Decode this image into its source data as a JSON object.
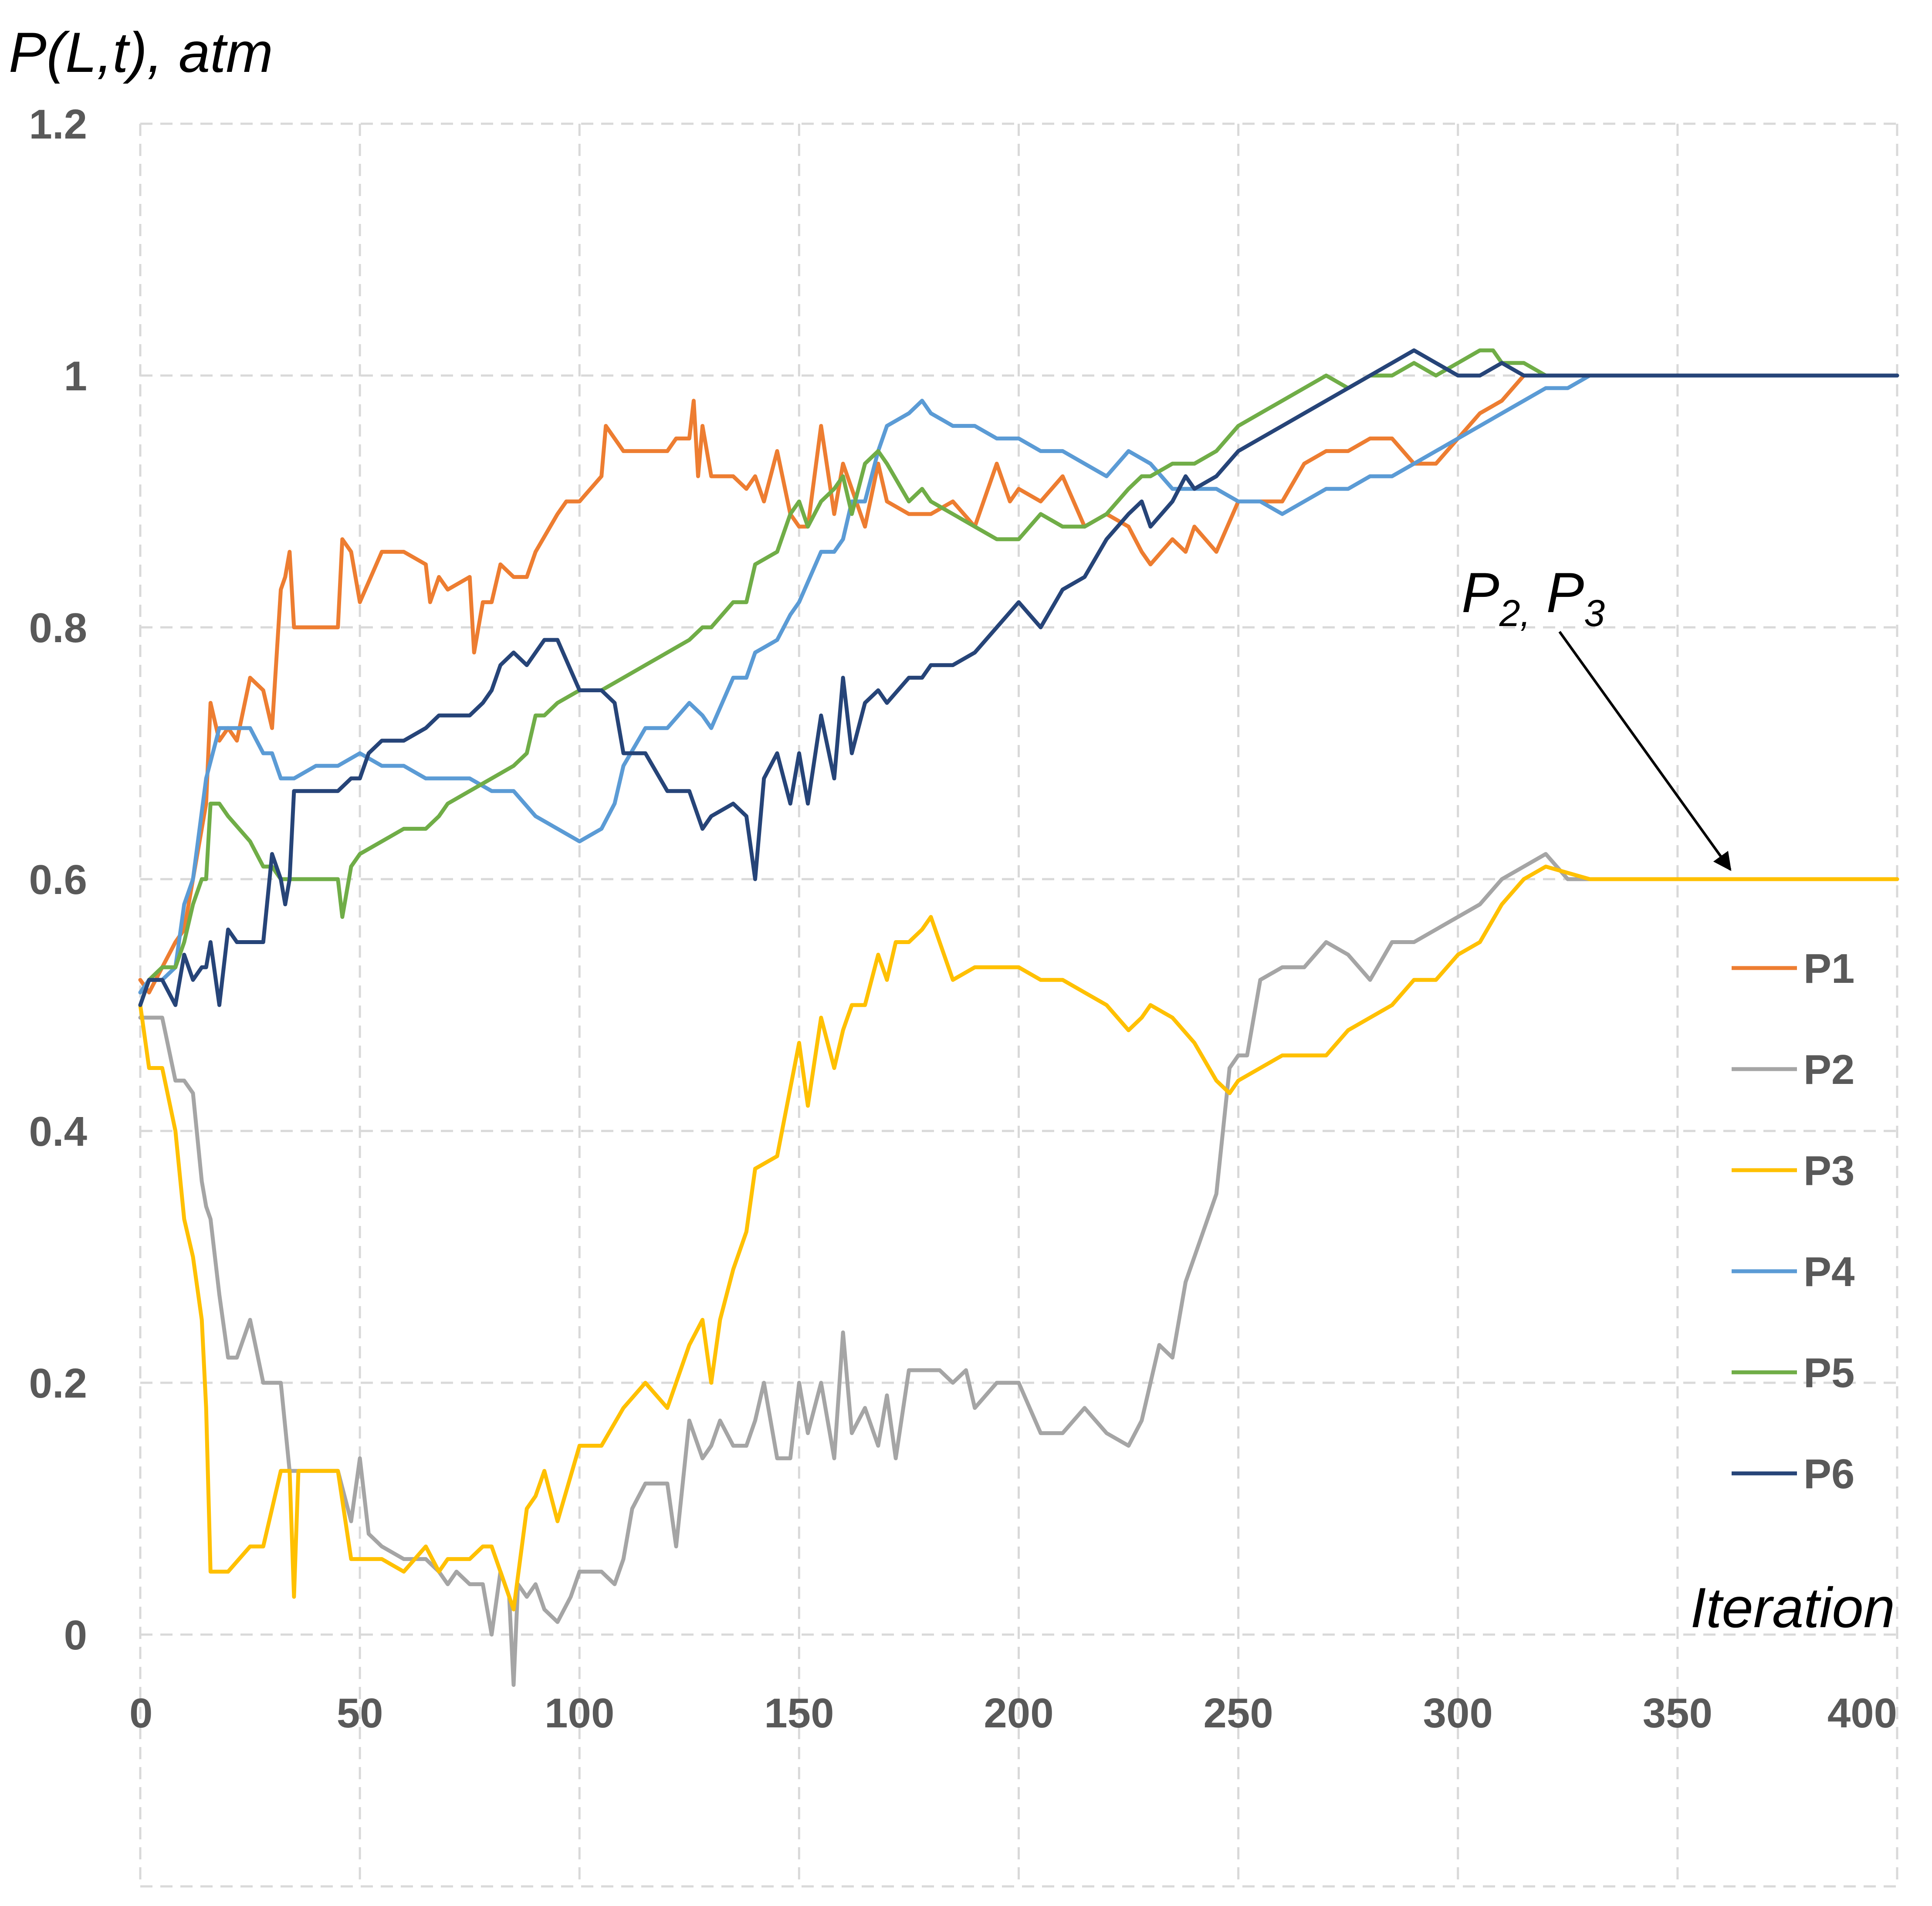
{
  "chart_data": {
    "type": "line",
    "ylabel": "P(L,t), atm",
    "xlabel": "Iteration",
    "xlim": [
      0,
      400
    ],
    "ylim": [
      -0.2,
      1.2
    ],
    "x_ticks": [
      "0",
      "50",
      "100",
      "150",
      "200",
      "250",
      "300",
      "350",
      "400"
    ],
    "y_ticks": [
      "0",
      "0.2",
      "0.4",
      "0.6",
      "0.8",
      "1",
      "1.2"
    ],
    "grid": true,
    "legend_position": "right",
    "annotation": {
      "base1": "P",
      "sub1": "2,",
      "base2": "P",
      "sub2": "3",
      "points_to": [
        362,
        0.6
      ]
    },
    "series": [
      {
        "name": "P1",
        "color": "#ED7D31",
        "x": [
          0,
          2,
          5,
          8,
          10,
          12,
          15,
          16,
          18,
          20,
          22,
          25,
          28,
          30,
          32,
          33,
          34,
          35,
          36,
          38,
          45,
          46,
          48,
          50,
          55,
          60,
          65,
          66,
          68,
          70,
          75,
          76,
          78,
          80,
          82,
          85,
          88,
          90,
          95,
          97,
          100,
          105,
          106,
          110,
          115,
          120,
          122,
          125,
          126,
          127,
          128,
          130,
          135,
          138,
          140,
          142,
          145,
          148,
          150,
          152,
          155,
          158,
          160,
          162,
          165,
          168,
          170,
          175,
          180,
          185,
          190,
          195,
          198,
          200,
          205,
          210,
          215,
          220,
          225,
          228,
          230,
          235,
          238,
          240,
          245,
          250,
          255,
          260,
          265,
          270,
          275,
          280,
          285,
          290,
          295,
          300,
          305,
          310,
          315,
          320,
          330,
          340,
          350,
          360,
          380,
          400
        ],
        "y": [
          0.52,
          0.51,
          0.53,
          0.55,
          0.56,
          0.6,
          0.66,
          0.74,
          0.71,
          0.72,
          0.71,
          0.76,
          0.75,
          0.72,
          0.83,
          0.84,
          0.86,
          0.8,
          0.8,
          0.8,
          0.8,
          0.87,
          0.86,
          0.82,
          0.86,
          0.86,
          0.85,
          0.82,
          0.84,
          0.83,
          0.84,
          0.78,
          0.82,
          0.82,
          0.85,
          0.84,
          0.84,
          0.86,
          0.89,
          0.9,
          0.9,
          0.92,
          0.96,
          0.94,
          0.94,
          0.94,
          0.95,
          0.95,
          0.98,
          0.92,
          0.96,
          0.92,
          0.92,
          0.91,
          0.92,
          0.9,
          0.94,
          0.89,
          0.88,
          0.88,
          0.96,
          0.89,
          0.93,
          0.91,
          0.88,
          0.93,
          0.9,
          0.89,
          0.89,
          0.9,
          0.88,
          0.93,
          0.9,
          0.91,
          0.9,
          0.92,
          0.88,
          0.89,
          0.88,
          0.86,
          0.85,
          0.87,
          0.86,
          0.88,
          0.86,
          0.9,
          0.9,
          0.9,
          0.93,
          0.94,
          0.94,
          0.95,
          0.95,
          0.93,
          0.93,
          0.95,
          0.97,
          0.98,
          1.0,
          1.0,
          1.0,
          1.0,
          1.0,
          1.0,
          1.0,
          1.0
        ]
      },
      {
        "name": "P2",
        "color": "#A5A5A5",
        "x": [
          0,
          2,
          5,
          8,
          10,
          12,
          14,
          15,
          16,
          17,
          18,
          20,
          22,
          25,
          28,
          30,
          32,
          34,
          35,
          40,
          45,
          48,
          50,
          52,
          55,
          60,
          65,
          68,
          70,
          72,
          75,
          78,
          80,
          82,
          84,
          85,
          86,
          88,
          90,
          92,
          95,
          98,
          100,
          102,
          105,
          108,
          110,
          112,
          115,
          118,
          120,
          122,
          125,
          128,
          130,
          132,
          135,
          138,
          140,
          142,
          145,
          148,
          150,
          152,
          155,
          158,
          160,
          162,
          165,
          168,
          170,
          172,
          175,
          178,
          180,
          182,
          185,
          188,
          190,
          195,
          200,
          205,
          210,
          215,
          220,
          225,
          228,
          230,
          232,
          235,
          238,
          240,
          242,
          245,
          248,
          250,
          252,
          255,
          260,
          265,
          270,
          275,
          280,
          285,
          290,
          295,
          300,
          305,
          310,
          315,
          320,
          325,
          330,
          340,
          350,
          360,
          380,
          400
        ],
        "y": [
          0.49,
          0.49,
          0.49,
          0.44,
          0.44,
          0.43,
          0.36,
          0.34,
          0.33,
          0.3,
          0.27,
          0.22,
          0.22,
          0.25,
          0.2,
          0.2,
          0.2,
          0.13,
          0.13,
          0.13,
          0.13,
          0.09,
          0.14,
          0.08,
          0.07,
          0.06,
          0.06,
          0.05,
          0.04,
          0.05,
          0.04,
          0.04,
          0.0,
          0.05,
          0.03,
          -0.04,
          0.04,
          0.03,
          0.04,
          0.02,
          0.01,
          0.03,
          0.05,
          0.05,
          0.05,
          0.04,
          0.06,
          0.1,
          0.12,
          0.12,
          0.12,
          0.07,
          0.17,
          0.14,
          0.15,
          0.17,
          0.15,
          0.15,
          0.17,
          0.2,
          0.14,
          0.14,
          0.2,
          0.16,
          0.2,
          0.14,
          0.24,
          0.16,
          0.18,
          0.15,
          0.19,
          0.14,
          0.21,
          0.21,
          0.21,
          0.21,
          0.2,
          0.21,
          0.18,
          0.2,
          0.2,
          0.16,
          0.16,
          0.18,
          0.16,
          0.15,
          0.17,
          0.2,
          0.23,
          0.22,
          0.28,
          0.3,
          0.32,
          0.35,
          0.45,
          0.46,
          0.46,
          0.52,
          0.53,
          0.53,
          0.55,
          0.54,
          0.52,
          0.55,
          0.55,
          0.56,
          0.57,
          0.58,
          0.6,
          0.61,
          0.62,
          0.6,
          0.6,
          0.6,
          0.6,
          0.6,
          0.6,
          0.6
        ]
      },
      {
        "name": "P3",
        "color": "#FFC000",
        "x": [
          0,
          2,
          5,
          8,
          10,
          12,
          14,
          15,
          16,
          17,
          18,
          20,
          25,
          28,
          30,
          32,
          34,
          35,
          36,
          38,
          45,
          48,
          50,
          55,
          60,
          65,
          68,
          70,
          75,
          78,
          80,
          85,
          88,
          90,
          92,
          95,
          100,
          105,
          110,
          115,
          120,
          125,
          128,
          130,
          132,
          135,
          138,
          140,
          145,
          150,
          152,
          155,
          158,
          160,
          162,
          165,
          168,
          170,
          172,
          175,
          178,
          180,
          182,
          185,
          190,
          195,
          200,
          205,
          210,
          215,
          220,
          225,
          228,
          230,
          235,
          240,
          245,
          248,
          250,
          255,
          260,
          265,
          270,
          275,
          280,
          285,
          290,
          295,
          300,
          305,
          310,
          315,
          320,
          330,
          340,
          350,
          360,
          380,
          400
        ],
        "y": [
          0.5,
          0.45,
          0.45,
          0.4,
          0.33,
          0.3,
          0.25,
          0.18,
          0.05,
          0.05,
          0.05,
          0.05,
          0.07,
          0.07,
          0.1,
          0.13,
          0.13,
          0.03,
          0.13,
          0.13,
          0.13,
          0.06,
          0.06,
          0.06,
          0.05,
          0.07,
          0.05,
          0.06,
          0.06,
          0.07,
          0.07,
          0.02,
          0.1,
          0.11,
          0.13,
          0.09,
          0.15,
          0.15,
          0.18,
          0.2,
          0.18,
          0.23,
          0.25,
          0.2,
          0.25,
          0.29,
          0.32,
          0.37,
          0.38,
          0.47,
          0.42,
          0.49,
          0.45,
          0.48,
          0.5,
          0.5,
          0.54,
          0.52,
          0.55,
          0.55,
          0.56,
          0.57,
          0.55,
          0.52,
          0.53,
          0.53,
          0.53,
          0.52,
          0.52,
          0.51,
          0.5,
          0.48,
          0.49,
          0.5,
          0.49,
          0.47,
          0.44,
          0.43,
          0.44,
          0.45,
          0.46,
          0.46,
          0.46,
          0.48,
          0.49,
          0.5,
          0.52,
          0.52,
          0.54,
          0.55,
          0.58,
          0.6,
          0.61,
          0.6,
          0.6,
          0.6,
          0.6,
          0.6,
          0.6
        ]
      },
      {
        "name": "P4",
        "color": "#5B9BD5",
        "x": [
          0,
          2,
          5,
          8,
          10,
          12,
          15,
          18,
          20,
          25,
          28,
          30,
          32,
          35,
          40,
          45,
          50,
          55,
          60,
          65,
          70,
          75,
          80,
          85,
          90,
          95,
          100,
          105,
          108,
          110,
          115,
          120,
          125,
          128,
          130,
          135,
          138,
          140,
          145,
          148,
          150,
          155,
          158,
          160,
          162,
          165,
          168,
          170,
          175,
          178,
          180,
          185,
          190,
          195,
          200,
          205,
          210,
          215,
          220,
          225,
          230,
          235,
          240,
          245,
          250,
          255,
          260,
          265,
          270,
          275,
          280,
          285,
          290,
          295,
          300,
          305,
          310,
          315,
          320,
          325,
          330,
          340,
          350,
          360,
          380,
          400
        ],
        "y": [
          0.51,
          0.52,
          0.52,
          0.53,
          0.58,
          0.6,
          0.68,
          0.72,
          0.72,
          0.72,
          0.7,
          0.7,
          0.68,
          0.68,
          0.69,
          0.69,
          0.7,
          0.69,
          0.69,
          0.68,
          0.68,
          0.68,
          0.67,
          0.67,
          0.65,
          0.64,
          0.63,
          0.64,
          0.66,
          0.69,
          0.72,
          0.72,
          0.74,
          0.73,
          0.72,
          0.76,
          0.76,
          0.78,
          0.79,
          0.81,
          0.82,
          0.86,
          0.86,
          0.87,
          0.9,
          0.9,
          0.94,
          0.96,
          0.97,
          0.98,
          0.97,
          0.96,
          0.96,
          0.95,
          0.95,
          0.94,
          0.94,
          0.93,
          0.92,
          0.94,
          0.93,
          0.91,
          0.91,
          0.91,
          0.9,
          0.9,
          0.89,
          0.9,
          0.91,
          0.91,
          0.92,
          0.92,
          0.93,
          0.94,
          0.95,
          0.96,
          0.97,
          0.98,
          0.99,
          0.99,
          1.0,
          1.0,
          1.0,
          1.0,
          1.0,
          1.0
        ]
      },
      {
        "name": "P5",
        "color": "#70AD47",
        "x": [
          0,
          2,
          5,
          8,
          10,
          12,
          14,
          15,
          16,
          18,
          20,
          25,
          28,
          30,
          32,
          35,
          40,
          45,
          46,
          48,
          50,
          55,
          60,
          65,
          68,
          70,
          75,
          80,
          85,
          88,
          90,
          92,
          95,
          100,
          105,
          110,
          115,
          120,
          125,
          128,
          130,
          135,
          138,
          140,
          145,
          148,
          150,
          152,
          155,
          158,
          160,
          162,
          165,
          168,
          170,
          175,
          178,
          180,
          185,
          190,
          195,
          200,
          205,
          210,
          215,
          220,
          225,
          228,
          230,
          235,
          240,
          245,
          250,
          255,
          260,
          265,
          270,
          275,
          280,
          285,
          290,
          295,
          300,
          305,
          308,
          310,
          315,
          320,
          330,
          340,
          350,
          360,
          380,
          400
        ],
        "y": [
          0.5,
          0.52,
          0.53,
          0.53,
          0.55,
          0.58,
          0.6,
          0.6,
          0.66,
          0.66,
          0.65,
          0.63,
          0.61,
          0.61,
          0.6,
          0.6,
          0.6,
          0.6,
          0.57,
          0.61,
          0.62,
          0.63,
          0.64,
          0.64,
          0.65,
          0.66,
          0.67,
          0.68,
          0.69,
          0.7,
          0.73,
          0.73,
          0.74,
          0.75,
          0.75,
          0.76,
          0.77,
          0.78,
          0.79,
          0.8,
          0.8,
          0.82,
          0.82,
          0.85,
          0.86,
          0.89,
          0.9,
          0.88,
          0.9,
          0.91,
          0.92,
          0.89,
          0.93,
          0.94,
          0.93,
          0.9,
          0.91,
          0.9,
          0.89,
          0.88,
          0.87,
          0.87,
          0.89,
          0.88,
          0.88,
          0.89,
          0.91,
          0.92,
          0.92,
          0.93,
          0.93,
          0.94,
          0.96,
          0.97,
          0.98,
          0.99,
          1.0,
          0.99,
          1.0,
          1.0,
          1.01,
          1.0,
          1.01,
          1.02,
          1.02,
          1.01,
          1.01,
          1.0,
          1.0,
          1.0,
          1.0,
          1.0,
          1.0,
          1.0
        ]
      },
      {
        "name": "P6",
        "color": "#264478",
        "x": [
          0,
          2,
          5,
          8,
          10,
          12,
          14,
          15,
          16,
          18,
          20,
          22,
          25,
          28,
          30,
          32,
          33,
          34,
          35,
          38,
          40,
          45,
          48,
          50,
          52,
          55,
          60,
          65,
          68,
          70,
          75,
          78,
          80,
          82,
          85,
          88,
          90,
          92,
          95,
          100,
          105,
          108,
          110,
          115,
          120,
          122,
          125,
          128,
          130,
          135,
          138,
          140,
          142,
          145,
          148,
          150,
          152,
          155,
          158,
          160,
          162,
          165,
          168,
          170,
          175,
          178,
          180,
          185,
          190,
          195,
          200,
          205,
          210,
          215,
          220,
          225,
          228,
          230,
          235,
          238,
          240,
          245,
          250,
          255,
          260,
          265,
          270,
          275,
          280,
          285,
          290,
          295,
          300,
          305,
          310,
          315,
          320,
          330,
          340,
          350,
          360,
          380,
          400
        ],
        "y": [
          0.5,
          0.52,
          0.52,
          0.5,
          0.54,
          0.52,
          0.53,
          0.53,
          0.55,
          0.5,
          0.56,
          0.55,
          0.55,
          0.55,
          0.62,
          0.6,
          0.58,
          0.6,
          0.67,
          0.67,
          0.67,
          0.67,
          0.68,
          0.68,
          0.7,
          0.71,
          0.71,
          0.72,
          0.73,
          0.73,
          0.73,
          0.74,
          0.75,
          0.77,
          0.78,
          0.77,
          0.78,
          0.79,
          0.79,
          0.75,
          0.75,
          0.74,
          0.7,
          0.7,
          0.67,
          0.67,
          0.67,
          0.64,
          0.65,
          0.66,
          0.65,
          0.6,
          0.68,
          0.7,
          0.66,
          0.7,
          0.66,
          0.73,
          0.68,
          0.76,
          0.7,
          0.74,
          0.75,
          0.74,
          0.76,
          0.76,
          0.77,
          0.77,
          0.78,
          0.8,
          0.82,
          0.8,
          0.83,
          0.84,
          0.87,
          0.89,
          0.9,
          0.88,
          0.9,
          0.92,
          0.91,
          0.92,
          0.94,
          0.95,
          0.96,
          0.97,
          0.98,
          0.99,
          1.0,
          1.01,
          1.02,
          1.01,
          1.0,
          1.0,
          1.01,
          1.0,
          1.0,
          1.0,
          1.0,
          1.0,
          1.0,
          1.0,
          1.0
        ]
      }
    ]
  }
}
